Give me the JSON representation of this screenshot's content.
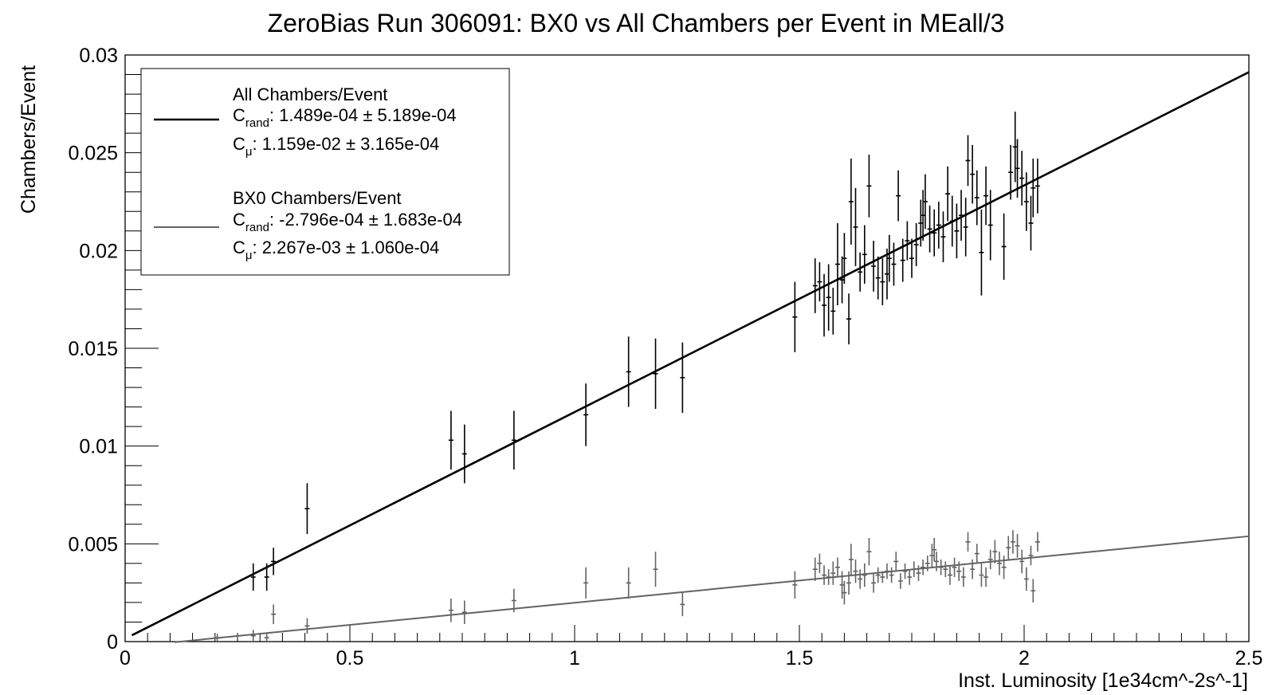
{
  "chart_data": {
    "type": "scatter",
    "title": "ZeroBias Run 306091: BX0 vs All Chambers per Event in MEall/3",
    "xlabel": "Inst. Luminosity [1e34cm^-2s^-1]",
    "ylabel": "Chambers/Event",
    "xlim": [
      0,
      2.5
    ],
    "ylim": [
      0,
      0.03
    ],
    "x_ticks": [
      {
        "value": 0,
        "label": "0"
      },
      {
        "value": 0.5,
        "label": "0.5"
      },
      {
        "value": 1,
        "label": "1"
      },
      {
        "value": 1.5,
        "label": "1.5"
      },
      {
        "value": 2,
        "label": "2"
      },
      {
        "value": 2.5,
        "label": "2.5"
      }
    ],
    "y_ticks": [
      {
        "value": 0,
        "label": "0"
      },
      {
        "value": 0.005,
        "label": "0.005"
      },
      {
        "value": 0.01,
        "label": "0.01"
      },
      {
        "value": 0.015,
        "label": "0.015"
      },
      {
        "value": 0.02,
        "label": "0.02"
      },
      {
        "value": 0.025,
        "label": "0.025"
      },
      {
        "value": 0.03,
        "label": "0.03"
      }
    ],
    "grid": false,
    "legend_position": "top-left",
    "series": [
      {
        "name": "All Chambers/Event",
        "color": "#000000",
        "fit": {
          "c_rand": 0.0001489,
          "c_mu": 0.01159,
          "x_range": [
            0.015,
            2.5
          ]
        },
        "legend_lines": [
          {
            "symbol": "C",
            "subscript": "rand",
            "text": ": 1.489e-04  ± 5.189e-04"
          },
          {
            "symbol": "C",
            "subscript": "μ",
            "text": ": 1.159e-02  ± 3.165e-04"
          }
        ],
        "points": [
          [
            0.285,
            0.0033,
            0.0007
          ],
          [
            0.315,
            0.0033,
            0.0007
          ],
          [
            0.33,
            0.0041,
            0.0007
          ],
          [
            0.405,
            0.0068,
            0.0013
          ],
          [
            0.725,
            0.0103,
            0.0015
          ],
          [
            0.755,
            0.0096,
            0.0015
          ],
          [
            0.865,
            0.0103,
            0.0015
          ],
          [
            1.025,
            0.0116,
            0.0016
          ],
          [
            1.12,
            0.0138,
            0.0018
          ],
          [
            1.18,
            0.0137,
            0.0018
          ],
          [
            1.24,
            0.0135,
            0.0018
          ],
          [
            1.49,
            0.0166,
            0.0018
          ],
          [
            1.535,
            0.0182,
            0.0014
          ],
          [
            1.545,
            0.0184,
            0.001
          ],
          [
            1.555,
            0.0172,
            0.0016
          ],
          [
            1.565,
            0.0176,
            0.0017
          ],
          [
            1.575,
            0.0169,
            0.0012
          ],
          [
            1.585,
            0.0193,
            0.0021
          ],
          [
            1.595,
            0.0185,
            0.0012
          ],
          [
            1.6,
            0.0196,
            0.0013
          ],
          [
            1.61,
            0.0165,
            0.0013
          ],
          [
            1.615,
            0.0225,
            0.0022
          ],
          [
            1.625,
            0.0212,
            0.002
          ],
          [
            1.635,
            0.0189,
            0.001
          ],
          [
            1.645,
            0.0198,
            0.0015
          ],
          [
            1.655,
            0.0233,
            0.0016
          ],
          [
            1.665,
            0.0192,
            0.0013
          ],
          [
            1.675,
            0.0186,
            0.0011
          ],
          [
            1.685,
            0.0184,
            0.0012
          ],
          [
            1.695,
            0.0188,
            0.0013
          ],
          [
            1.7,
            0.0196,
            0.0012
          ],
          [
            1.71,
            0.0193,
            0.0011
          ],
          [
            1.72,
            0.0228,
            0.0013
          ],
          [
            1.73,
            0.0195,
            0.0011
          ],
          [
            1.74,
            0.0205,
            0.001
          ],
          [
            1.75,
            0.0196,
            0.001
          ],
          [
            1.76,
            0.0203,
            0.0011
          ],
          [
            1.77,
            0.0214,
            0.0012
          ],
          [
            1.775,
            0.0218,
            0.0013
          ],
          [
            1.78,
            0.0225,
            0.0014
          ],
          [
            1.79,
            0.0211,
            0.0012
          ],
          [
            1.8,
            0.0209,
            0.0012
          ],
          [
            1.81,
            0.0213,
            0.0012
          ],
          [
            1.82,
            0.0207,
            0.0013
          ],
          [
            1.83,
            0.0229,
            0.0014
          ],
          [
            1.84,
            0.0215,
            0.0013
          ],
          [
            1.85,
            0.021,
            0.0014
          ],
          [
            1.86,
            0.0218,
            0.0013
          ],
          [
            1.87,
            0.0212,
            0.0015
          ],
          [
            1.875,
            0.0246,
            0.0013
          ],
          [
            1.885,
            0.0239,
            0.0015
          ],
          [
            1.895,
            0.0227,
            0.0014
          ],
          [
            1.905,
            0.0199,
            0.0022
          ],
          [
            1.915,
            0.0228,
            0.0015
          ],
          [
            1.925,
            0.0213,
            0.0018
          ],
          [
            1.955,
            0.0202,
            0.0017
          ],
          [
            1.97,
            0.024,
            0.0014
          ],
          [
            1.98,
            0.0253,
            0.0018
          ],
          [
            1.985,
            0.0242,
            0.0015
          ],
          [
            1.995,
            0.0237,
            0.0014
          ],
          [
            2.005,
            0.0225,
            0.0015
          ],
          [
            2.015,
            0.0214,
            0.0014
          ],
          [
            2.02,
            0.0232,
            0.0015
          ],
          [
            2.03,
            0.0233,
            0.0014
          ]
        ]
      },
      {
        "name": "BX0 Chambers/Event",
        "color": "#636363",
        "fit": {
          "c_rand": -0.0002796,
          "c_mu": 0.002267,
          "x_range": [
            0.11,
            2.5
          ]
        },
        "legend_lines": [
          {
            "symbol": "C",
            "subscript": "rand",
            "text": ": -2.796e-04  ± 1.683e-04"
          },
          {
            "symbol": "C",
            "subscript": "μ",
            "text": ": 2.267e-03  ± 1.060e-04"
          }
        ],
        "points": [
          [
            0.205,
            0.0002,
            0.0002
          ],
          [
            0.285,
            0.0003,
            0.0003
          ],
          [
            0.315,
            0.0002,
            0.0002
          ],
          [
            0.33,
            0.0014,
            0.0005
          ],
          [
            0.405,
            0.0008,
            0.0004
          ],
          [
            0.725,
            0.0016,
            0.0006
          ],
          [
            0.755,
            0.0015,
            0.0006
          ],
          [
            0.865,
            0.0021,
            0.0006
          ],
          [
            1.025,
            0.003,
            0.0008
          ],
          [
            1.12,
            0.003,
            0.0008
          ],
          [
            1.18,
            0.0037,
            0.0009
          ],
          [
            1.24,
            0.0019,
            0.0006
          ],
          [
            1.49,
            0.0029,
            0.0007
          ],
          [
            1.535,
            0.0037,
            0.0006
          ],
          [
            1.545,
            0.004,
            0.0005
          ],
          [
            1.555,
            0.0034,
            0.0005
          ],
          [
            1.565,
            0.0033,
            0.0004
          ],
          [
            1.575,
            0.0035,
            0.0006
          ],
          [
            1.585,
            0.0038,
            0.0005
          ],
          [
            1.595,
            0.0029,
            0.0007
          ],
          [
            1.6,
            0.0025,
            0.0006
          ],
          [
            1.61,
            0.003,
            0.0006
          ],
          [
            1.615,
            0.0042,
            0.0008
          ],
          [
            1.625,
            0.0036,
            0.0006
          ],
          [
            1.635,
            0.0032,
            0.0005
          ],
          [
            1.645,
            0.0034,
            0.0006
          ],
          [
            1.655,
            0.0046,
            0.0007
          ],
          [
            1.665,
            0.003,
            0.0005
          ],
          [
            1.675,
            0.0034,
            0.0004
          ],
          [
            1.685,
            0.0033,
            0.0003
          ],
          [
            1.695,
            0.0036,
            0.0004
          ],
          [
            1.705,
            0.0034,
            0.0004
          ],
          [
            1.715,
            0.0041,
            0.0005
          ],
          [
            1.725,
            0.0031,
            0.0004
          ],
          [
            1.735,
            0.0036,
            0.0004
          ],
          [
            1.745,
            0.0033,
            0.0004
          ],
          [
            1.755,
            0.0037,
            0.0004
          ],
          [
            1.765,
            0.0035,
            0.0004
          ],
          [
            1.775,
            0.0038,
            0.0004
          ],
          [
            1.785,
            0.004,
            0.0004
          ],
          [
            1.795,
            0.0044,
            0.0006
          ],
          [
            1.8,
            0.0047,
            0.0006
          ],
          [
            1.805,
            0.0041,
            0.0005
          ],
          [
            1.815,
            0.0038,
            0.0004
          ],
          [
            1.825,
            0.0037,
            0.0004
          ],
          [
            1.835,
            0.0034,
            0.0005
          ],
          [
            1.845,
            0.0038,
            0.0005
          ],
          [
            1.855,
            0.0036,
            0.0005
          ],
          [
            1.865,
            0.0033,
            0.0005
          ],
          [
            1.875,
            0.0051,
            0.0005
          ],
          [
            1.885,
            0.0037,
            0.0005
          ],
          [
            1.895,
            0.0045,
            0.0005
          ],
          [
            1.905,
            0.0034,
            0.0006
          ],
          [
            1.915,
            0.0033,
            0.0005
          ],
          [
            1.925,
            0.0042,
            0.0005
          ],
          [
            1.935,
            0.0046,
            0.0006
          ],
          [
            1.945,
            0.004,
            0.0006
          ],
          [
            1.955,
            0.0038,
            0.0006
          ],
          [
            1.965,
            0.0048,
            0.0006
          ],
          [
            1.975,
            0.0051,
            0.0006
          ],
          [
            1.985,
            0.0049,
            0.0006
          ],
          [
            1.995,
            0.0041,
            0.0006
          ],
          [
            2.005,
            0.0032,
            0.0006
          ],
          [
            2.015,
            0.0044,
            0.0005
          ],
          [
            2.02,
            0.0026,
            0.0006
          ],
          [
            2.03,
            0.0051,
            0.0005
          ]
        ]
      }
    ]
  }
}
